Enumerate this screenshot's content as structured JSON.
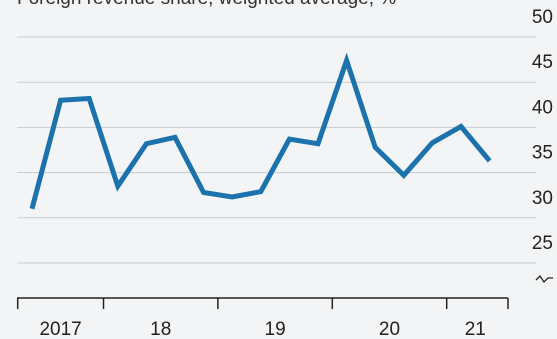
{
  "chart_data": {
    "type": "line",
    "title": "Foreign revenue share, weighted average, %",
    "categories": [
      null,
      "2017",
      null,
      null,
      "18",
      null,
      null,
      null,
      "19",
      null,
      null,
      null,
      "20",
      null,
      null,
      "21",
      null
    ],
    "series": [
      {
        "name": "Foreign revenue share",
        "color": "#1b72ad",
        "values": [
          31,
          43,
          43.2,
          33.5,
          38.2,
          38.9,
          32.8,
          32.3,
          32.9,
          38.7,
          38.2,
          47.4,
          37.8,
          34.7,
          38.3,
          40.1,
          36.3
        ]
      }
    ],
    "ylim": [
      22,
      51.5
    ],
    "yticks": [
      25,
      30,
      35,
      40,
      45,
      50
    ],
    "grid": true,
    "y_axis_side": "right"
  }
}
